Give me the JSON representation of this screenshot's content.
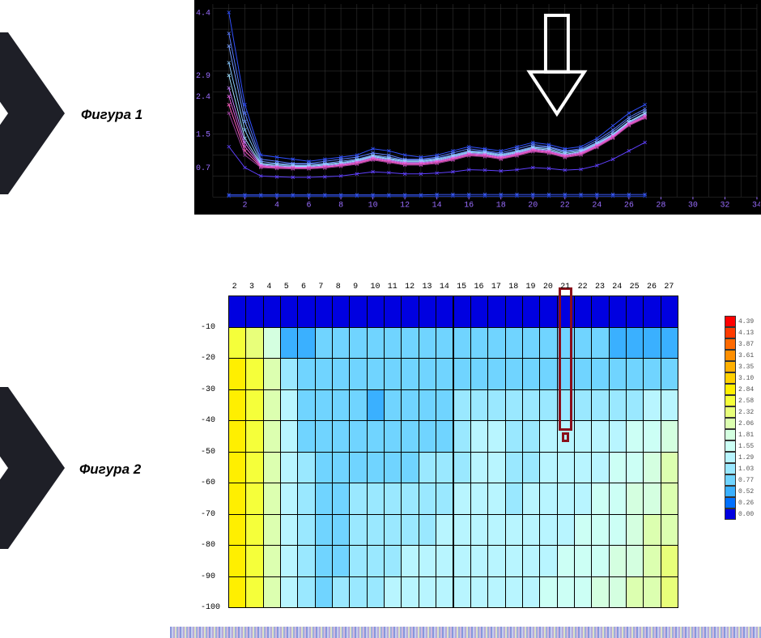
{
  "labels": {
    "figure1": "Фигура 1",
    "figure2": "Фигура 2"
  },
  "layout": {
    "big_arrow_color": "#1e1f27",
    "label_fontsize_pt": 13,
    "label_fontstyle": "italic bold"
  },
  "figure1": {
    "type": "line",
    "background_color": "#000000",
    "grid_color": "#3a3a3a",
    "axis_tick_color": "#9a6dff",
    "axis_font": "Courier New",
    "axis_fontsize_pt": 8,
    "xlim": [
      0,
      34
    ],
    "ylim": [
      0,
      4.6
    ],
    "xtick_step": 2,
    "xticks": [
      2,
      4,
      6,
      8,
      10,
      12,
      14,
      16,
      18,
      20,
      22,
      24,
      26,
      28,
      30,
      32,
      34
    ],
    "yticks": [
      0.7,
      1.5,
      2.4,
      2.9,
      4.4
    ],
    "line_width": 1,
    "series_colors": [
      "#3050ff",
      "#5a7bff",
      "#7aa0ff",
      "#88c8ff",
      "#a0e0ff",
      "#c080ff",
      "#e060e0",
      "#ff60c0",
      "#a040a0",
      "#6040ff",
      "#4060ff",
      "#2040d0"
    ],
    "series": [
      {
        "y": [
          4.4,
          2.2,
          1.0,
          0.95,
          0.9,
          0.85,
          0.9,
          0.95,
          1.0,
          1.15,
          1.1,
          1.0,
          0.95,
          1.0,
          1.1,
          1.2,
          1.15,
          1.1,
          1.2,
          1.3,
          1.25,
          1.15,
          1.2,
          1.4,
          1.7,
          2.0,
          2.2
        ]
      },
      {
        "y": [
          3.9,
          2.0,
          0.9,
          0.85,
          0.8,
          0.8,
          0.85,
          0.9,
          0.95,
          1.05,
          1.0,
          0.9,
          0.9,
          0.95,
          1.05,
          1.15,
          1.1,
          1.05,
          1.15,
          1.25,
          1.2,
          1.1,
          1.15,
          1.35,
          1.6,
          1.9,
          2.1
        ]
      },
      {
        "y": [
          3.6,
          1.8,
          0.85,
          0.8,
          0.78,
          0.78,
          0.8,
          0.85,
          0.9,
          1.0,
          0.95,
          0.88,
          0.88,
          0.92,
          1.0,
          1.1,
          1.08,
          1.02,
          1.1,
          1.2,
          1.18,
          1.08,
          1.12,
          1.3,
          1.55,
          1.85,
          2.05
        ]
      },
      {
        "y": [
          3.2,
          1.6,
          0.8,
          0.78,
          0.75,
          0.75,
          0.78,
          0.82,
          0.88,
          0.98,
          0.92,
          0.86,
          0.86,
          0.9,
          0.98,
          1.08,
          1.06,
          1.0,
          1.08,
          1.18,
          1.15,
          1.05,
          1.1,
          1.28,
          1.5,
          1.8,
          2.0
        ]
      },
      {
        "y": [
          2.9,
          1.4,
          0.78,
          0.75,
          0.73,
          0.73,
          0.76,
          0.8,
          0.86,
          0.96,
          0.9,
          0.84,
          0.84,
          0.88,
          0.96,
          1.06,
          1.04,
          0.98,
          1.06,
          1.16,
          1.12,
          1.02,
          1.08,
          1.26,
          1.48,
          1.78,
          1.98
        ]
      },
      {
        "y": [
          2.6,
          1.3,
          0.76,
          0.73,
          0.71,
          0.71,
          0.74,
          0.78,
          0.84,
          0.94,
          0.88,
          0.82,
          0.82,
          0.86,
          0.94,
          1.04,
          1.02,
          0.96,
          1.04,
          1.14,
          1.1,
          1.0,
          1.06,
          1.24,
          1.46,
          1.76,
          1.95
        ]
      },
      {
        "y": [
          2.4,
          1.2,
          0.74,
          0.71,
          0.7,
          0.7,
          0.72,
          0.76,
          0.82,
          0.92,
          0.86,
          0.8,
          0.8,
          0.84,
          0.92,
          1.02,
          1.0,
          0.94,
          1.02,
          1.12,
          1.08,
          0.98,
          1.04,
          1.22,
          1.44,
          1.74,
          1.92
        ]
      },
      {
        "y": [
          2.2,
          1.1,
          0.72,
          0.7,
          0.69,
          0.69,
          0.71,
          0.75,
          0.8,
          0.9,
          0.84,
          0.78,
          0.78,
          0.82,
          0.9,
          1.0,
          0.98,
          0.92,
          1.0,
          1.1,
          1.06,
          0.96,
          1.02,
          1.2,
          1.42,
          1.72,
          1.9
        ]
      },
      {
        "y": [
          2.0,
          1.0,
          0.7,
          0.68,
          0.67,
          0.67,
          0.69,
          0.73,
          0.78,
          0.88,
          0.82,
          0.76,
          0.76,
          0.8,
          0.88,
          0.98,
          0.96,
          0.9,
          0.98,
          1.08,
          1.04,
          0.94,
          1.0,
          1.18,
          1.4,
          1.7,
          1.88
        ]
      },
      {
        "y": [
          1.2,
          0.7,
          0.5,
          0.48,
          0.47,
          0.47,
          0.48,
          0.5,
          0.55,
          0.6,
          0.58,
          0.55,
          0.55,
          0.57,
          0.6,
          0.65,
          0.64,
          0.62,
          0.65,
          0.7,
          0.68,
          0.64,
          0.66,
          0.75,
          0.9,
          1.1,
          1.3
        ]
      },
      {
        "y": [
          0.05,
          0.05,
          0.05,
          0.05,
          0.05,
          0.05,
          0.05,
          0.05,
          0.05,
          0.05,
          0.05,
          0.05,
          0.05,
          0.06,
          0.06,
          0.06,
          0.06,
          0.06,
          0.06,
          0.06,
          0.06,
          0.06,
          0.06,
          0.06,
          0.06,
          0.06,
          0.06
        ]
      },
      {
        "y": [
          0.02,
          0.02,
          0.02,
          0.02,
          0.02,
          0.02,
          0.02,
          0.02,
          0.02,
          0.02,
          0.02,
          0.02,
          0.02,
          0.02,
          0.02,
          0.02,
          0.02,
          0.02,
          0.02,
          0.02,
          0.02,
          0.02,
          0.02,
          0.02,
          0.02,
          0.02,
          0.02
        ]
      }
    ],
    "marker_style": "x",
    "highlight_arrow": {
      "x": 21.5,
      "color": "#ffffff",
      "stroke_width": 4
    }
  },
  "figure2": {
    "type": "heatmap-contour",
    "background_color": "#ffffff",
    "grid_color": "#000000",
    "axis_font": "Courier New",
    "axis_fontsize_pt": 8,
    "xlim": [
      1,
      27
    ],
    "ylim": [
      -100,
      0
    ],
    "xticks": [
      2,
      3,
      4,
      5,
      6,
      7,
      8,
      9,
      10,
      11,
      12,
      13,
      14,
      15,
      16,
      17,
      18,
      19,
      20,
      21,
      22,
      23,
      24,
      25,
      26,
      27
    ],
    "yticks": [
      -10,
      -20,
      -30,
      -40,
      -50,
      -60,
      -70,
      -80,
      -90,
      -100
    ],
    "colormap": [
      {
        "v": 4.39,
        "c": "#ff0000"
      },
      {
        "v": 4.13,
        "c": "#ff3b00"
      },
      {
        "v": 3.87,
        "c": "#ff6a00"
      },
      {
        "v": 3.61,
        "c": "#ff8f00"
      },
      {
        "v": 3.35,
        "c": "#ffb000"
      },
      {
        "v": 3.1,
        "c": "#ffd000"
      },
      {
        "v": 2.84,
        "c": "#ffef00"
      },
      {
        "v": 2.58,
        "c": "#f5ff3a"
      },
      {
        "v": 2.32,
        "c": "#e8ff7a"
      },
      {
        "v": 2.06,
        "c": "#dcffb0"
      },
      {
        "v": 1.81,
        "c": "#d4ffe0"
      },
      {
        "v": 1.55,
        "c": "#ccfff5"
      },
      {
        "v": 1.29,
        "c": "#b8f5ff"
      },
      {
        "v": 1.03,
        "c": "#9ae8ff"
      },
      {
        "v": 0.77,
        "c": "#70d4ff"
      },
      {
        "v": 0.52,
        "c": "#3ab0ff"
      },
      {
        "v": 0.26,
        "c": "#0070ff"
      },
      {
        "v": 0.0,
        "c": "#0000e0"
      }
    ],
    "grid_values": [
      [
        0.0,
        0.0,
        0.0,
        0.0,
        0.0,
        0.0,
        0.0,
        0.0,
        0.0,
        0.0,
        0.0,
        0.0,
        0.0,
        0.0,
        0.0,
        0.0,
        0.0,
        0.0,
        0.0,
        0.0,
        0.0,
        0.0,
        0.0,
        0.0,
        0.0,
        0.0
      ],
      [
        2.58,
        2.32,
        1.81,
        0.52,
        0.52,
        0.77,
        0.77,
        0.77,
        0.77,
        0.77,
        0.77,
        0.77,
        0.77,
        0.77,
        0.77,
        0.77,
        0.77,
        0.77,
        0.77,
        0.77,
        0.77,
        0.77,
        0.52,
        0.52,
        0.52,
        0.52
      ],
      [
        2.84,
        2.58,
        2.06,
        1.03,
        0.77,
        0.77,
        0.77,
        0.77,
        0.77,
        0.77,
        0.77,
        0.77,
        0.77,
        0.77,
        0.77,
        0.77,
        0.77,
        0.77,
        0.77,
        0.77,
        0.77,
        0.77,
        0.77,
        0.77,
        0.77,
        0.77
      ],
      [
        2.84,
        2.58,
        2.06,
        1.29,
        0.77,
        0.77,
        0.77,
        0.77,
        0.52,
        0.77,
        0.77,
        0.77,
        0.77,
        1.03,
        1.03,
        1.03,
        1.03,
        1.03,
        1.03,
        1.03,
        1.03,
        1.03,
        1.03,
        1.03,
        1.29,
        1.29
      ],
      [
        2.84,
        2.58,
        2.06,
        1.29,
        0.77,
        0.77,
        0.77,
        0.77,
        0.77,
        0.77,
        0.77,
        0.77,
        0.77,
        1.03,
        1.29,
        1.29,
        1.03,
        1.03,
        1.29,
        1.29,
        1.29,
        1.29,
        1.29,
        1.55,
        1.55,
        1.81
      ],
      [
        2.84,
        2.58,
        2.06,
        1.29,
        1.03,
        0.77,
        0.77,
        0.77,
        0.77,
        0.77,
        0.77,
        1.03,
        1.03,
        1.03,
        1.29,
        1.29,
        1.03,
        1.03,
        1.29,
        1.29,
        1.29,
        1.29,
        1.55,
        1.55,
        1.81,
        2.06
      ],
      [
        2.84,
        2.58,
        2.06,
        1.29,
        1.03,
        0.77,
        0.77,
        1.03,
        1.03,
        1.03,
        1.03,
        1.03,
        1.03,
        1.29,
        1.29,
        1.29,
        1.03,
        1.29,
        1.29,
        1.29,
        1.29,
        1.55,
        1.55,
        1.81,
        1.81,
        2.06
      ],
      [
        2.84,
        2.58,
        2.06,
        1.29,
        1.03,
        0.77,
        0.77,
        1.03,
        1.03,
        1.03,
        1.03,
        1.03,
        1.29,
        1.29,
        1.29,
        1.29,
        1.29,
        1.29,
        1.29,
        1.29,
        1.55,
        1.55,
        1.55,
        1.81,
        2.06,
        2.06
      ],
      [
        2.84,
        2.58,
        2.06,
        1.29,
        1.03,
        0.77,
        0.77,
        1.03,
        1.03,
        1.03,
        1.29,
        1.29,
        1.29,
        1.29,
        1.29,
        1.29,
        1.29,
        1.29,
        1.29,
        1.55,
        1.55,
        1.55,
        1.81,
        1.81,
        2.06,
        2.32
      ],
      [
        2.84,
        2.58,
        2.06,
        1.29,
        1.03,
        0.77,
        1.03,
        1.03,
        1.03,
        1.29,
        1.29,
        1.29,
        1.29,
        1.29,
        1.29,
        1.29,
        1.29,
        1.29,
        1.55,
        1.55,
        1.55,
        1.81,
        1.81,
        2.06,
        2.06,
        2.32
      ]
    ],
    "marker": {
      "col": 21,
      "row_from": 0,
      "row_to": 4,
      "color": "#8a0f1a",
      "stroke_width": 3
    }
  }
}
